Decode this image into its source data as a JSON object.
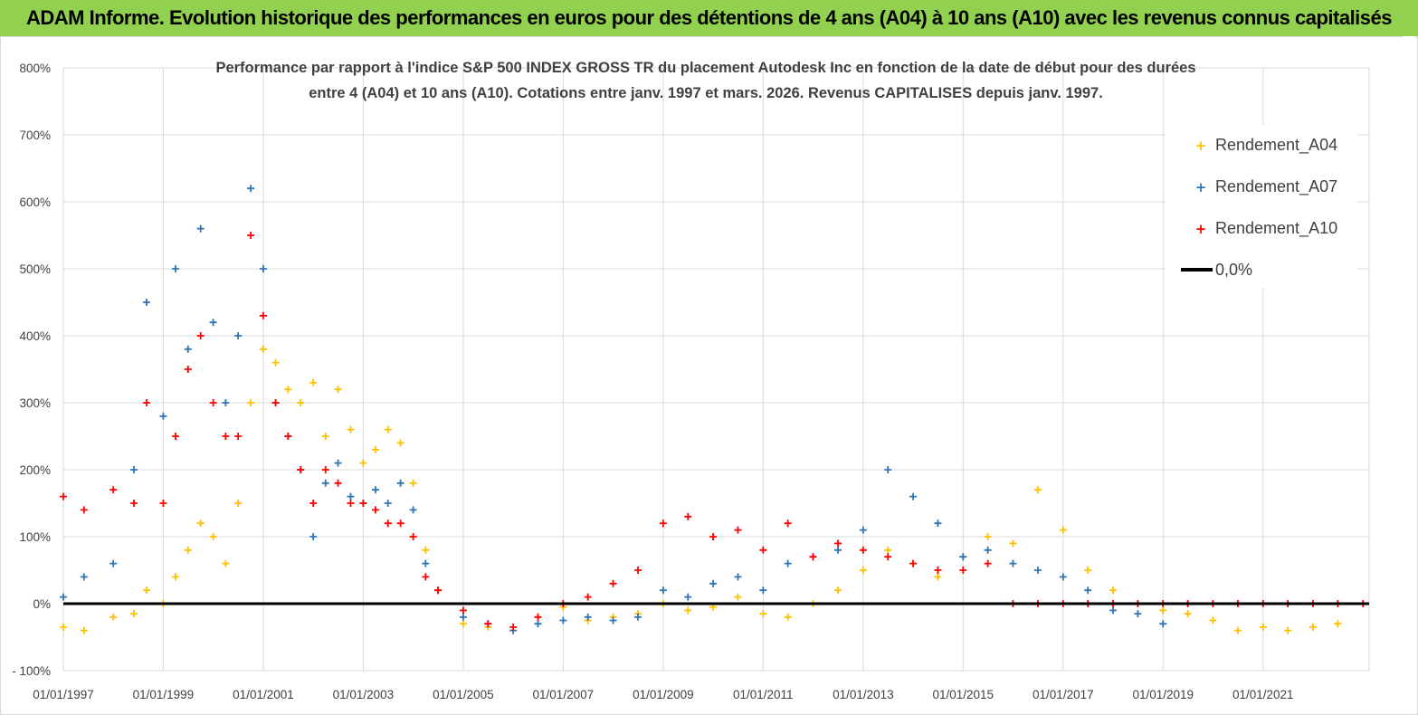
{
  "header": {
    "title": "ADAM Informe. Evolution historique des performances en euros pour des détentions de 4 ans (A04) à 10 ans (A10) avec les revenus connus capitalisés"
  },
  "chart_data": {
    "type": "scatter",
    "title_line1": "Performance par rapport à l'indice S&P 500 INDEX GROSS TR  du placement Autodesk Inc en fonction de la date de début pour des durées",
    "title_line2": "entre 4 (A04) et 10 ans (A10). Cotations entre janv. 1997 et mars. 2026. Revenus CAPITALISES depuis janv. 1997.",
    "xlabel": "",
    "ylabel": "",
    "x_range": [
      "1997-01-01",
      "2023-02-15"
    ],
    "ylim": [
      -100,
      800
    ],
    "y_ticks": [
      "- 100%",
      "0%",
      "100%",
      "200%",
      "300%",
      "400%",
      "500%",
      "600%",
      "700%",
      "800%"
    ],
    "x_ticks": [
      "01/01/1997",
      "01/01/1999",
      "01/01/2001",
      "01/01/2003",
      "01/01/2005",
      "01/01/2007",
      "01/01/2009",
      "01/01/2011",
      "01/01/2013",
      "01/01/2015",
      "01/01/2017",
      "01/01/2019",
      "01/01/2021"
    ],
    "grid": true,
    "legend_position": "top-right",
    "colors": {
      "A04": "#ffc000",
      "A07": "#2e75b6",
      "A10": "#ff0000",
      "zero": "#000000"
    },
    "series": [
      {
        "name": "Rendement_A04",
        "marker": "plus",
        "points": [
          [
            "1997-01-01",
            -35
          ],
          [
            "1997-06-01",
            -40
          ],
          [
            "1998-01-01",
            -20
          ],
          [
            "1998-06-01",
            -15
          ],
          [
            "1998-09-01",
            20
          ],
          [
            "1999-01-01",
            0
          ],
          [
            "1999-04-01",
            40
          ],
          [
            "1999-07-01",
            80
          ],
          [
            "1999-10-01",
            120
          ],
          [
            "2000-01-01",
            100
          ],
          [
            "2000-04-01",
            60
          ],
          [
            "2000-07-01",
            150
          ],
          [
            "2000-10-01",
            300
          ],
          [
            "2001-01-01",
            380
          ],
          [
            "2001-04-01",
            360
          ],
          [
            "2001-07-01",
            320
          ],
          [
            "2001-10-01",
            300
          ],
          [
            "2002-01-01",
            330
          ],
          [
            "2002-04-01",
            250
          ],
          [
            "2002-07-01",
            320
          ],
          [
            "2002-10-01",
            260
          ],
          [
            "2003-01-01",
            210
          ],
          [
            "2003-04-01",
            230
          ],
          [
            "2003-07-01",
            260
          ],
          [
            "2003-10-01",
            240
          ],
          [
            "2004-01-01",
            180
          ],
          [
            "2004-04-01",
            80
          ],
          [
            "2004-07-01",
            20
          ],
          [
            "2005-01-01",
            -30
          ],
          [
            "2005-07-01",
            -35
          ],
          [
            "2006-01-01",
            -40
          ],
          [
            "2006-07-01",
            -20
          ],
          [
            "2007-01-01",
            -5
          ],
          [
            "2007-07-01",
            -25
          ],
          [
            "2008-01-01",
            -20
          ],
          [
            "2008-07-01",
            -15
          ],
          [
            "2009-01-01",
            0
          ],
          [
            "2009-07-01",
            -10
          ],
          [
            "2010-01-01",
            -5
          ],
          [
            "2010-07-01",
            10
          ],
          [
            "2011-01-01",
            -15
          ],
          [
            "2011-07-01",
            -20
          ],
          [
            "2012-01-01",
            0
          ],
          [
            "2012-07-01",
            20
          ],
          [
            "2013-01-01",
            50
          ],
          [
            "2013-07-01",
            80
          ],
          [
            "2014-01-01",
            60
          ],
          [
            "2014-07-01",
            40
          ],
          [
            "2015-01-01",
            70
          ],
          [
            "2015-07-01",
            100
          ],
          [
            "2016-01-01",
            90
          ],
          [
            "2016-07-01",
            170
          ],
          [
            "2017-01-01",
            110
          ],
          [
            "2017-07-01",
            50
          ],
          [
            "2018-01-01",
            20
          ],
          [
            "2018-07-01",
            0
          ],
          [
            "2019-01-01",
            -10
          ],
          [
            "2019-07-01",
            -15
          ],
          [
            "2020-01-01",
            -25
          ],
          [
            "2020-07-01",
            -40
          ],
          [
            "2021-01-01",
            -35
          ],
          [
            "2021-07-01",
            -40
          ],
          [
            "2022-01-01",
            -35
          ],
          [
            "2022-07-01",
            -30
          ]
        ]
      },
      {
        "name": "Rendement_A07",
        "marker": "plus",
        "points": [
          [
            "1997-01-01",
            10
          ],
          [
            "1997-06-01",
            40
          ],
          [
            "1998-01-01",
            60
          ],
          [
            "1998-06-01",
            200
          ],
          [
            "1998-09-01",
            450
          ],
          [
            "1999-01-01",
            280
          ],
          [
            "1999-04-01",
            500
          ],
          [
            "1999-07-01",
            380
          ],
          [
            "1999-10-01",
            560
          ],
          [
            "2000-01-01",
            420
          ],
          [
            "2000-04-01",
            300
          ],
          [
            "2000-07-01",
            400
          ],
          [
            "2000-10-01",
            620
          ],
          [
            "2001-01-01",
            500
          ],
          [
            "2001-04-01",
            300
          ],
          [
            "2001-07-01",
            250
          ],
          [
            "2001-10-01",
            200
          ],
          [
            "2002-01-01",
            100
          ],
          [
            "2002-04-01",
            180
          ],
          [
            "2002-07-01",
            210
          ],
          [
            "2002-10-01",
            160
          ],
          [
            "2003-01-01",
            150
          ],
          [
            "2003-04-01",
            170
          ],
          [
            "2003-07-01",
            150
          ],
          [
            "2003-10-01",
            180
          ],
          [
            "2004-01-01",
            140
          ],
          [
            "2004-04-01",
            60
          ],
          [
            "2004-07-01",
            20
          ],
          [
            "2005-01-01",
            -20
          ],
          [
            "2005-07-01",
            -30
          ],
          [
            "2006-01-01",
            -40
          ],
          [
            "2006-07-01",
            -30
          ],
          [
            "2007-01-01",
            -25
          ],
          [
            "2007-07-01",
            -20
          ],
          [
            "2008-01-01",
            -25
          ],
          [
            "2008-07-01",
            -20
          ],
          [
            "2009-01-01",
            20
          ],
          [
            "2009-07-01",
            10
          ],
          [
            "2010-01-01",
            30
          ],
          [
            "2010-07-01",
            40
          ],
          [
            "2011-01-01",
            20
          ],
          [
            "2011-07-01",
            60
          ],
          [
            "2012-01-01",
            70
          ],
          [
            "2012-07-01",
            80
          ],
          [
            "2013-01-01",
            110
          ],
          [
            "2013-07-01",
            200
          ],
          [
            "2014-01-01",
            160
          ],
          [
            "2014-07-01",
            120
          ],
          [
            "2015-01-01",
            70
          ],
          [
            "2015-07-01",
            80
          ],
          [
            "2016-01-01",
            60
          ],
          [
            "2016-07-01",
            50
          ],
          [
            "2017-01-01",
            40
          ],
          [
            "2017-07-01",
            20
          ],
          [
            "2018-01-01",
            -10
          ],
          [
            "2018-07-01",
            -15
          ],
          [
            "2019-01-01",
            -30
          ]
        ]
      },
      {
        "name": "Rendement_A10",
        "marker": "plus",
        "points": [
          [
            "1997-01-01",
            160
          ],
          [
            "1997-06-01",
            140
          ],
          [
            "1998-01-01",
            170
          ],
          [
            "1998-06-01",
            150
          ],
          [
            "1998-09-01",
            300
          ],
          [
            "1999-01-01",
            150
          ],
          [
            "1999-04-01",
            250
          ],
          [
            "1999-07-01",
            350
          ],
          [
            "1999-10-01",
            400
          ],
          [
            "2000-01-01",
            300
          ],
          [
            "2000-04-01",
            250
          ],
          [
            "2000-07-01",
            250
          ],
          [
            "2000-10-01",
            550
          ],
          [
            "2001-01-01",
            430
          ],
          [
            "2001-04-01",
            300
          ],
          [
            "2001-07-01",
            250
          ],
          [
            "2001-10-01",
            200
          ],
          [
            "2002-01-01",
            150
          ],
          [
            "2002-04-01",
            200
          ],
          [
            "2002-07-01",
            180
          ],
          [
            "2002-10-01",
            150
          ],
          [
            "2003-01-01",
            150
          ],
          [
            "2003-04-01",
            140
          ],
          [
            "2003-07-01",
            120
          ],
          [
            "2003-10-01",
            120
          ],
          [
            "2004-01-01",
            100
          ],
          [
            "2004-04-01",
            40
          ],
          [
            "2004-07-01",
            20
          ],
          [
            "2005-01-01",
            -10
          ],
          [
            "2005-07-01",
            -30
          ],
          [
            "2006-01-01",
            -35
          ],
          [
            "2006-07-01",
            -20
          ],
          [
            "2007-01-01",
            0
          ],
          [
            "2007-07-01",
            10
          ],
          [
            "2008-01-01",
            30
          ],
          [
            "2008-07-01",
            50
          ],
          [
            "2009-01-01",
            120
          ],
          [
            "2009-07-01",
            130
          ],
          [
            "2010-01-01",
            100
          ],
          [
            "2010-07-01",
            110
          ],
          [
            "2011-01-01",
            80
          ],
          [
            "2011-07-01",
            120
          ],
          [
            "2012-01-01",
            70
          ],
          [
            "2012-07-01",
            90
          ],
          [
            "2013-01-01",
            80
          ],
          [
            "2013-07-01",
            70
          ],
          [
            "2014-01-01",
            60
          ],
          [
            "2014-07-01",
            50
          ],
          [
            "2015-01-01",
            50
          ],
          [
            "2015-07-01",
            60
          ],
          [
            "2016-01-01",
            0
          ],
          [
            "2016-07-01",
            0
          ],
          [
            "2017-01-01",
            0
          ],
          [
            "2017-07-01",
            0
          ],
          [
            "2018-01-01",
            0
          ],
          [
            "2018-07-01",
            0
          ],
          [
            "2019-01-01",
            0
          ],
          [
            "2019-07-01",
            0
          ],
          [
            "2020-01-01",
            0
          ],
          [
            "2020-07-01",
            0
          ],
          [
            "2021-01-01",
            0
          ],
          [
            "2021-07-01",
            0
          ],
          [
            "2022-01-01",
            0
          ],
          [
            "2022-07-01",
            0
          ],
          [
            "2023-01-01",
            0
          ]
        ]
      }
    ],
    "reference_line": {
      "name": "0,0%",
      "y": 0
    }
  }
}
